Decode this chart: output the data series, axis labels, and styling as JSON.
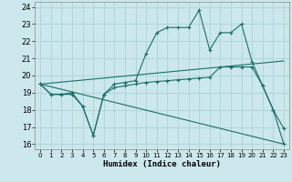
{
  "xlabel": "Humidex (Indice chaleur)",
  "xlim": [
    -0.5,
    23.5
  ],
  "ylim": [
    15.7,
    24.3
  ],
  "yticks": [
    16,
    17,
    18,
    19,
    20,
    21,
    22,
    23,
    24
  ],
  "xticks": [
    0,
    1,
    2,
    3,
    4,
    5,
    6,
    7,
    8,
    9,
    10,
    11,
    12,
    13,
    14,
    15,
    16,
    17,
    18,
    19,
    20,
    21,
    22,
    23
  ],
  "bg_color": "#cce8ec",
  "grid_color": "#b0d8dc",
  "line_color": "#1a6e6a",
  "curve1": [
    19.5,
    18.9,
    18.9,
    18.9,
    18.2,
    16.5,
    18.9,
    19.5,
    19.6,
    19.7,
    21.3,
    22.5,
    22.8,
    22.8,
    22.8,
    23.8,
    21.5,
    22.5,
    22.5,
    23.0,
    20.8,
    19.4,
    18.0,
    16.9
  ],
  "curve2": [
    19.5,
    18.9,
    18.9,
    19.0,
    18.2,
    16.5,
    18.9,
    19.3,
    19.4,
    19.5,
    19.6,
    19.65,
    19.7,
    19.75,
    19.8,
    19.85,
    19.9,
    20.5,
    20.5,
    20.5,
    20.5,
    19.4,
    18.0,
    16.0
  ],
  "diag1": {
    "x": [
      0,
      23
    ],
    "y": [
      19.5,
      16.0
    ]
  },
  "diag2": {
    "x": [
      0,
      23
    ],
    "y": [
      19.5,
      20.85
    ]
  }
}
